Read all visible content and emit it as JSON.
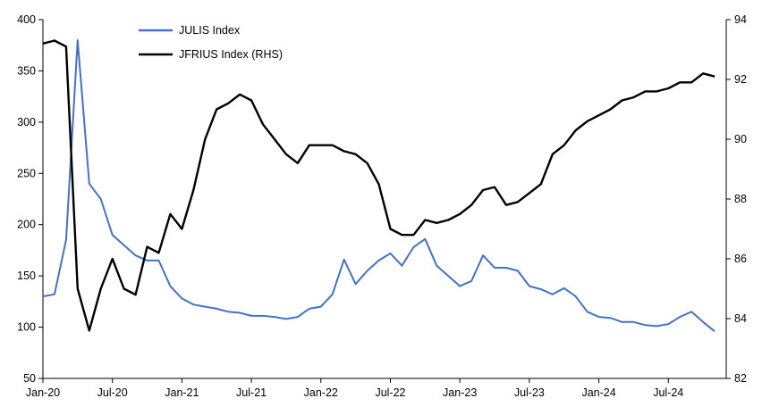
{
  "chart_data": {
    "type": "line",
    "title": "",
    "xlabel": "",
    "ylabel": "",
    "x_tick_labels": [
      "Jan-20",
      "Jul-20",
      "Jan-21",
      "Jul-21",
      "Jan-22",
      "Jul-22",
      "Jan-23",
      "Jul-23",
      "Jan-24",
      "Jul-24"
    ],
    "x_range": [
      "2020-01",
      "2024-12"
    ],
    "y_left": {
      "lim": [
        50,
        400
      ],
      "ticks": [
        50,
        100,
        150,
        200,
        250,
        300,
        350,
        400
      ]
    },
    "y_right": {
      "lim": [
        82,
        94
      ],
      "ticks": [
        82,
        84,
        86,
        88,
        90,
        92,
        94
      ]
    },
    "legend_position": "top-left",
    "grid": false,
    "series": [
      {
        "name": "JULIS Index",
        "axis": "left",
        "color": "#4472C4",
        "x": [
          "2020-01",
          "2020-02",
          "2020-03",
          "2020-04",
          "2020-05",
          "2020-06",
          "2020-07",
          "2020-08",
          "2020-09",
          "2020-10",
          "2020-11",
          "2020-12",
          "2021-01",
          "2021-02",
          "2021-03",
          "2021-04",
          "2021-05",
          "2021-06",
          "2021-07",
          "2021-08",
          "2021-09",
          "2021-10",
          "2021-11",
          "2021-12",
          "2022-01",
          "2022-02",
          "2022-03",
          "2022-04",
          "2022-05",
          "2022-06",
          "2022-07",
          "2022-08",
          "2022-09",
          "2022-10",
          "2022-11",
          "2022-12",
          "2023-01",
          "2023-02",
          "2023-03",
          "2023-04",
          "2023-05",
          "2023-06",
          "2023-07",
          "2023-08",
          "2023-09",
          "2023-10",
          "2023-11",
          "2023-12",
          "2024-01",
          "2024-02",
          "2024-03",
          "2024-04",
          "2024-05",
          "2024-06",
          "2024-07",
          "2024-08",
          "2024-09",
          "2024-10",
          "2024-11"
        ],
        "values": [
          130,
          132,
          185,
          380,
          240,
          225,
          190,
          180,
          170,
          165,
          165,
          140,
          128,
          122,
          120,
          118,
          115,
          114,
          111,
          111,
          110,
          108,
          110,
          118,
          120,
          132,
          166,
          142,
          155,
          165,
          172,
          160,
          178,
          186,
          160,
          150,
          140,
          145,
          170,
          158,
          158,
          155,
          140,
          137,
          132,
          138,
          130,
          115,
          110,
          109,
          105,
          105,
          102,
          101,
          103,
          110,
          115,
          105,
          96
        ]
      },
      {
        "name": "JFRIUS Index (RHS)",
        "axis": "right",
        "color": "#000000",
        "x": [
          "2020-01",
          "2020-02",
          "2020-03",
          "2020-04",
          "2020-05",
          "2020-06",
          "2020-07",
          "2020-08",
          "2020-09",
          "2020-10",
          "2020-11",
          "2020-12",
          "2021-01",
          "2021-02",
          "2021-03",
          "2021-04",
          "2021-05",
          "2021-06",
          "2021-07",
          "2021-08",
          "2021-09",
          "2021-10",
          "2021-11",
          "2021-12",
          "2022-01",
          "2022-02",
          "2022-03",
          "2022-04",
          "2022-05",
          "2022-06",
          "2022-07",
          "2022-08",
          "2022-09",
          "2022-10",
          "2022-11",
          "2022-12",
          "2023-01",
          "2023-02",
          "2023-03",
          "2023-04",
          "2023-05",
          "2023-06",
          "2023-07",
          "2023-08",
          "2023-09",
          "2023-10",
          "2023-11",
          "2023-12",
          "2024-01",
          "2024-02",
          "2024-03",
          "2024-04",
          "2024-05",
          "2024-06",
          "2024-07",
          "2024-08",
          "2024-09",
          "2024-10",
          "2024-11"
        ],
        "values": [
          93.2,
          93.3,
          93.1,
          85.0,
          83.6,
          85.0,
          86.0,
          85.0,
          84.8,
          86.4,
          86.2,
          87.5,
          87.0,
          88.3,
          90.0,
          91.0,
          91.2,
          91.5,
          91.3,
          90.5,
          90.0,
          89.5,
          89.2,
          89.8,
          89.8,
          89.8,
          89.6,
          89.5,
          89.2,
          88.5,
          87.0,
          86.8,
          86.8,
          87.3,
          87.2,
          87.3,
          87.5,
          87.8,
          88.3,
          88.4,
          87.8,
          87.9,
          88.2,
          88.5,
          89.5,
          89.8,
          90.3,
          90.6,
          90.8,
          91.0,
          91.3,
          91.4,
          91.6,
          91.6,
          91.7,
          91.9,
          91.9,
          92.2,
          92.1
        ]
      }
    ]
  }
}
